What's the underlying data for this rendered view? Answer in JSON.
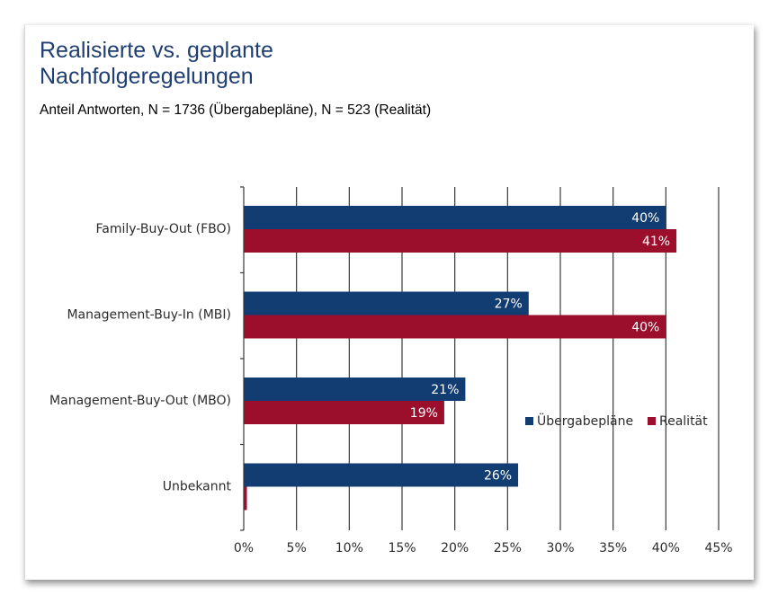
{
  "header": {
    "title_line1": "Realisierte vs. geplante",
    "title_line2": "Nachfolgeregelungen",
    "subtitle": "Anteil Antworten, N = 1736 (Übergabepläne), N = 523 (Realität)"
  },
  "chart_data": {
    "type": "bar",
    "orientation": "horizontal",
    "categories": [
      "Family-Buy-Out (FBO)",
      "Management-Buy-In (MBI)",
      "Management-Buy-Out (MBO)",
      "Unbekannt"
    ],
    "series": [
      {
        "name": "Übergabepläne",
        "color": "#123d73",
        "values": [
          40,
          27,
          21,
          26
        ],
        "labels": [
          "40%",
          "27%",
          "21%",
          "26%"
        ]
      },
      {
        "name": "Realität",
        "color": "#9b0f2d",
        "values": [
          41,
          40,
          19,
          0.3
        ],
        "labels": [
          "41%",
          "40%",
          "19%",
          ""
        ]
      }
    ],
    "xlim": [
      0,
      45
    ],
    "xticks": [
      0,
      5,
      10,
      15,
      20,
      25,
      30,
      35,
      40,
      45
    ],
    "xtick_labels": [
      "0%",
      "5%",
      "10%",
      "15%",
      "20%",
      "25%",
      "30%",
      "35%",
      "40%",
      "45%"
    ],
    "grid": "vertical",
    "legend_position": "right"
  }
}
